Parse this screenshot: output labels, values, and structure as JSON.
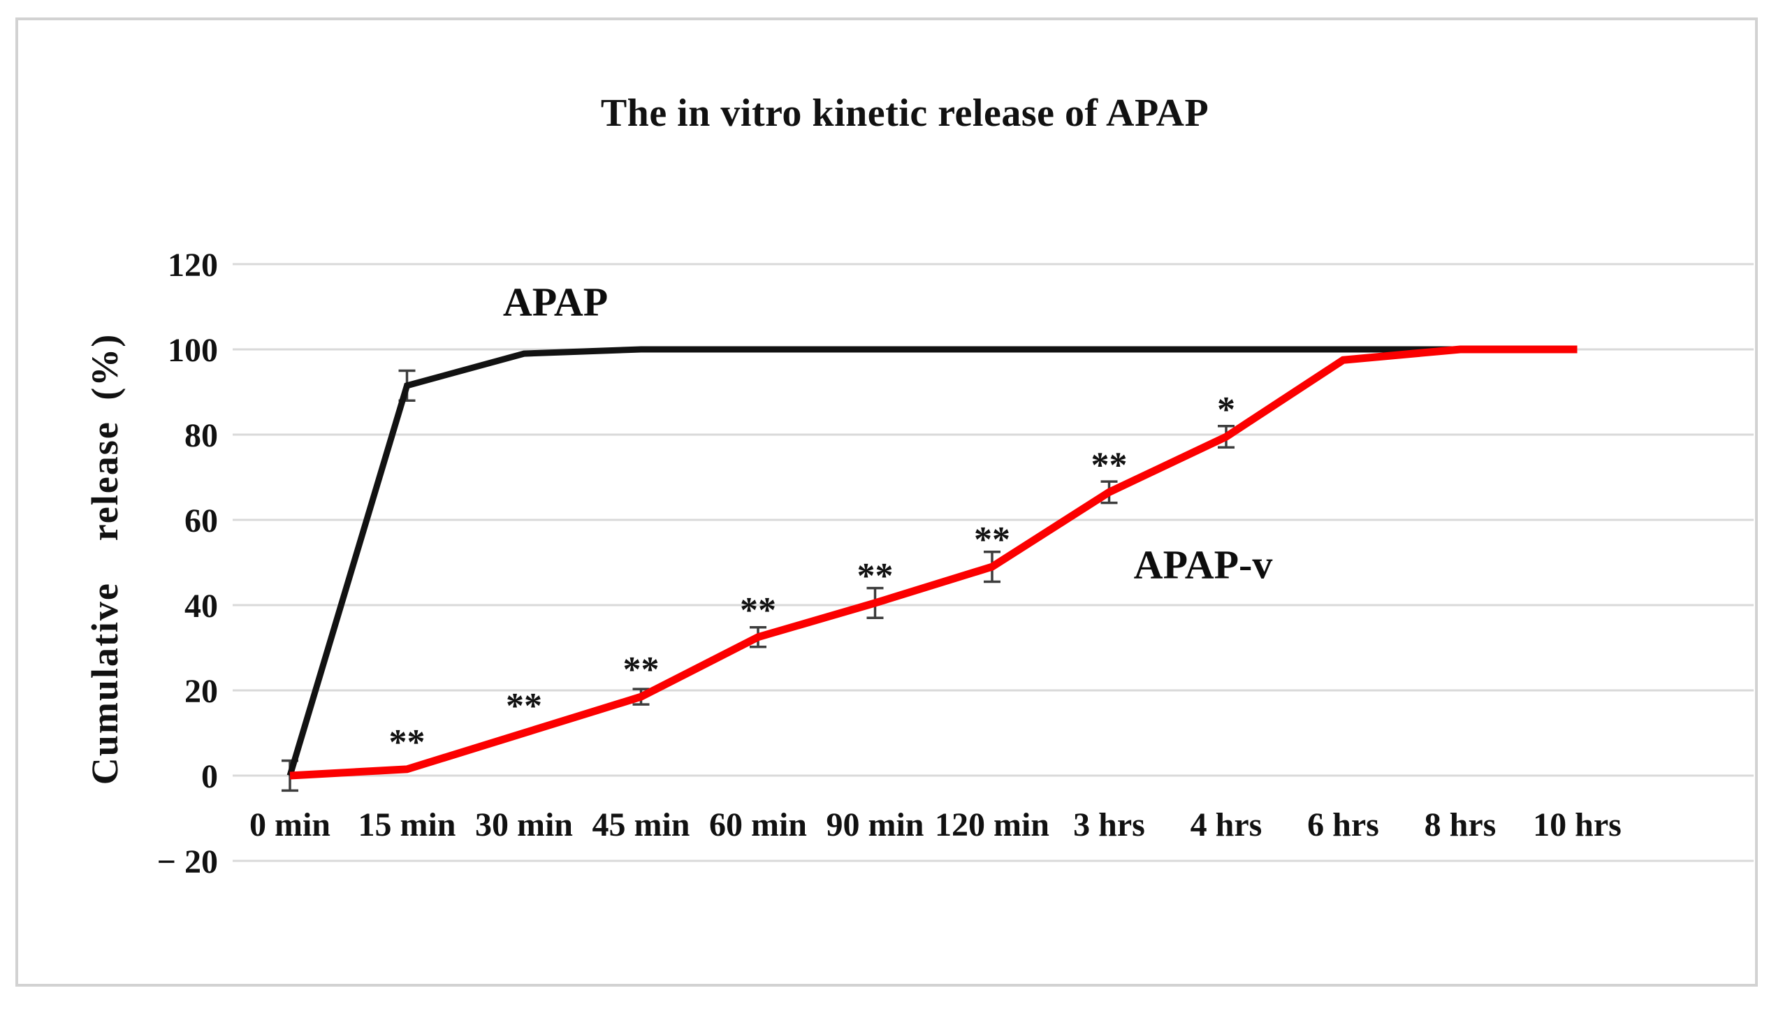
{
  "figure": {
    "title": "The in vitro kinetic release of APAP"
  },
  "chart_data": {
    "type": "line",
    "title": "The in vitro kinetic release of APAP",
    "xlabel": "",
    "ylabel": "Cumulative  release (%)",
    "ylim": [
      -20,
      120
    ],
    "grid": true,
    "legend_position": "inline-labels",
    "categories": [
      "0 min",
      "15 min",
      "30 min",
      "45 min",
      "60 min",
      "90 min",
      "120 min",
      "3 hrs",
      "4 hrs",
      "6 hrs",
      "8 hrs",
      "10 hrs"
    ],
    "ytick_values": [
      120,
      100,
      80,
      60,
      40,
      20,
      0,
      -20
    ],
    "ytick_labels": [
      "120",
      "100",
      "80",
      "60",
      "40",
      "20",
      "0",
      "− 20"
    ],
    "colors": {
      "grid": "#d9d9d9",
      "error_bar": "#3d3d3d",
      "border": "#d2d2d2",
      "text": "#111111"
    },
    "series": [
      {
        "name": "APAP",
        "color": "#121212",
        "line_width": 9,
        "values": [
          0,
          91.5,
          99,
          100,
          100,
          100,
          100,
          100,
          100,
          100,
          100,
          100
        ],
        "error_bars": [
          {
            "index": 0,
            "plus_minus": 3.5
          },
          {
            "index": 1,
            "plus_minus": 3.5
          }
        ],
        "significance": []
      },
      {
        "name": "APAP-v",
        "color": "#fb0000",
        "line_width": 11,
        "values": [
          0,
          1.5,
          10,
          18.5,
          32.5,
          40.5,
          49,
          66.5,
          79.5,
          97.5,
          100,
          100
        ],
        "error_bars": [
          {
            "index": 3,
            "plus_minus": 1.8
          },
          {
            "index": 4,
            "plus_minus": 2.3
          },
          {
            "index": 5,
            "plus_minus": 3.5
          },
          {
            "index": 6,
            "plus_minus": 3.5
          },
          {
            "index": 7,
            "plus_minus": 2.5
          },
          {
            "index": 8,
            "plus_minus": 2.5
          }
        ],
        "significance": [
          {
            "index": 1,
            "marker": "**"
          },
          {
            "index": 2,
            "marker": "**"
          },
          {
            "index": 3,
            "marker": "**"
          },
          {
            "index": 4,
            "marker": "**"
          },
          {
            "index": 5,
            "marker": "**"
          },
          {
            "index": 6,
            "marker": "**"
          },
          {
            "index": 7,
            "marker": "**"
          },
          {
            "index": 8,
            "marker": "*"
          }
        ]
      }
    ]
  }
}
